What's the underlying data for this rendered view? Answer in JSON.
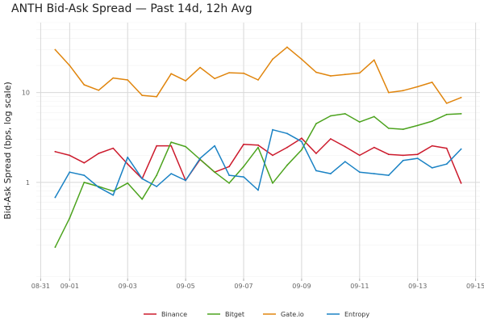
{
  "chart_data": {
    "type": "line",
    "title": "ANTH Bid-Ask Spread — Past 14d, 12h Avg",
    "xlabel": "",
    "ylabel": "Bid-Ask Spread (bps, log scale)",
    "y_scale": "log",
    "ylim": [
      0.085,
      60
    ],
    "y_ticks": [
      1,
      10
    ],
    "x_ticks": [
      "08-31",
      "09-01",
      "09-03",
      "09-05",
      "09-07",
      "09-09",
      "09-11",
      "09-13",
      "09-15"
    ],
    "x_tick_days": [
      0,
      1,
      3,
      5,
      7,
      9,
      11,
      13,
      15
    ],
    "x_start_day": 0.5,
    "x_step_days": 0.5,
    "grid": true,
    "legend_position": "bottom",
    "series": [
      {
        "name": "Binance",
        "color": "#cc1a2c",
        "values": [
          2.2,
          2.0,
          1.65,
          2.1,
          2.4,
          1.6,
          1.1,
          2.55,
          2.55,
          1.05,
          1.8,
          1.3,
          1.5,
          2.65,
          2.6,
          2.0,
          2.45,
          3.1,
          2.1,
          3.05,
          2.5,
          2.0,
          2.45,
          2.05,
          2.0,
          2.05,
          2.55,
          2.4,
          0.98
        ]
      },
      {
        "name": "Bitget",
        "color": "#4ca31e",
        "values": [
          0.19,
          0.4,
          1.0,
          0.9,
          0.8,
          0.98,
          0.65,
          1.2,
          2.8,
          2.5,
          1.8,
          1.3,
          0.98,
          1.5,
          2.45,
          0.98,
          1.55,
          2.3,
          4.5,
          5.5,
          5.8,
          4.7,
          5.4,
          4.0,
          3.9,
          4.3,
          4.8,
          5.7,
          5.8
        ]
      },
      {
        "name": "Gate.io",
        "color": "#e0850d",
        "values": [
          30.0,
          20.0,
          12.2,
          10.6,
          14.5,
          13.8,
          9.3,
          9.0,
          16.2,
          13.5,
          19.0,
          14.3,
          16.6,
          16.4,
          13.8,
          23.5,
          32.0,
          23.5,
          16.8,
          15.3,
          15.9,
          16.5,
          23.0,
          10.0,
          10.5,
          11.6,
          13.0,
          7.6,
          8.8
        ]
      },
      {
        "name": "Entropy",
        "color": "#1a82c4",
        "values": [
          0.68,
          1.3,
          1.2,
          0.88,
          0.72,
          1.9,
          1.1,
          0.9,
          1.25,
          1.05,
          1.85,
          2.55,
          1.2,
          1.15,
          0.82,
          3.85,
          3.5,
          2.85,
          1.35,
          1.25,
          1.7,
          1.3,
          1.25,
          1.2,
          1.75,
          1.85,
          1.45,
          1.6,
          2.35
        ]
      }
    ]
  }
}
